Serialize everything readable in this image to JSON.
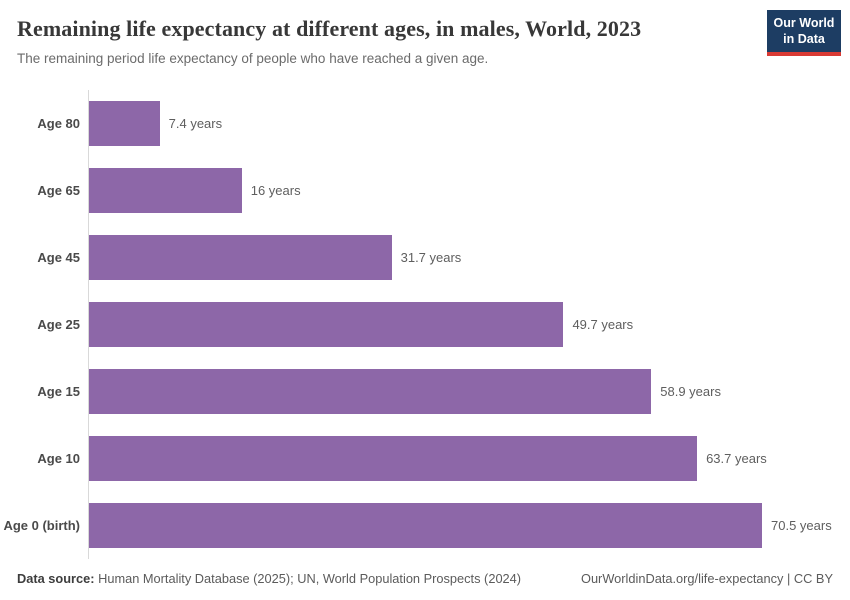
{
  "header": {
    "title": "Remaining life expectancy at different ages, in males, World, 2023",
    "subtitle": "The remaining period life expectancy of people who have reached a given age.",
    "logo": {
      "line1": "Our World",
      "line2": "in Data",
      "bg_color": "#1d3d63",
      "accent_color": "#d93a34"
    }
  },
  "chart_data": {
    "type": "bar",
    "orientation": "horizontal",
    "categories": [
      "Age 80",
      "Age 65",
      "Age 45",
      "Age 25",
      "Age 15",
      "Age 10",
      "Age 0 (birth)"
    ],
    "values": [
      7.4,
      16,
      31.7,
      49.7,
      58.9,
      63.7,
      70.5
    ],
    "value_labels": [
      "7.4 years",
      "16 years",
      "31.7 years",
      "49.7 years",
      "58.9 years",
      "63.7 years",
      "70.5 years"
    ],
    "title": "Remaining life expectancy at different ages, in males, World, 2023",
    "xlabel": "",
    "ylabel": "",
    "xlim": [
      0,
      70.5
    ],
    "unit": "years",
    "grid": false,
    "legend": "none",
    "bar_color": "#8d67a8",
    "axis_line_color": "#d9d9d9"
  },
  "footer": {
    "source_label": "Data source:",
    "source_text": " Human Mortality Database (2025); UN, World Population Prospects (2024)",
    "credit": "OurWorldinData.org/life-expectancy | CC BY"
  }
}
